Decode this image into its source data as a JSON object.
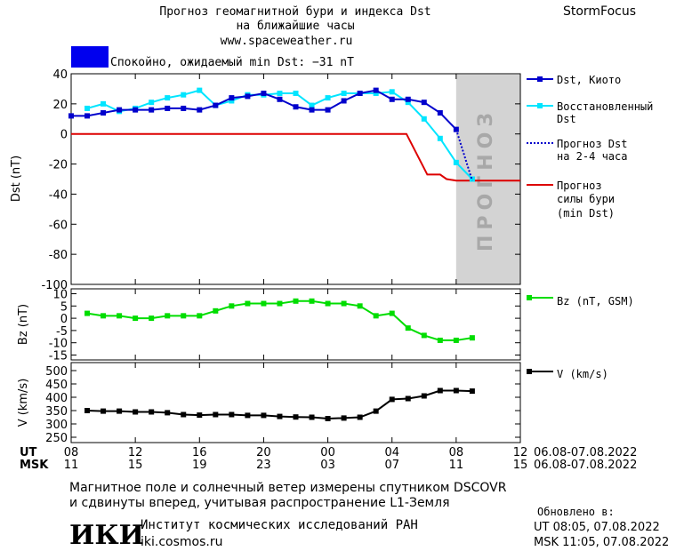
{
  "header": {
    "title_line1": "Прогноз геомагнитной бури и индекса Dst",
    "title_line2": "на ближайшие часы",
    "url": "www.spaceweather.ru",
    "brand": "StormFocus",
    "status_text": "Спокойно, ожидаемый min Dst: −31 nT",
    "status_color": "#0000ee"
  },
  "forecast_label": "ПРОГНОЗ",
  "legend": {
    "dst_kyoto": "Dst, Киото",
    "restored_1": "Восстановленный",
    "restored_2": "Dst",
    "forecast_dst_1": "Прогноз Dst",
    "forecast_dst_2": "на 2-4 часа",
    "storm_1": "Прогноз",
    "storm_2": "силы бури",
    "storm_3": "(min Dst)",
    "bz": "Bz (nT, GSM)",
    "v": "V (km/s)"
  },
  "axes": {
    "row_ut": "UT",
    "row_msk": "MSK",
    "ut_ticks": [
      "08",
      "12",
      "16",
      "20",
      "00",
      "04",
      "08",
      "12"
    ],
    "msk_ticks": [
      "11",
      "15",
      "19",
      "23",
      "03",
      "07",
      "11",
      "15"
    ],
    "date_range_ut": "06.08-07.08.2022",
    "date_range_msk": "06.08-07.08.2022"
  },
  "footer": {
    "note_line1": "Магнитное поле и солнечный ветер измерены спутником DSCOVR",
    "note_line2": "и сдвинуты вперед, учитывая распространение L1-Земля",
    "logo_text": "ИКИ",
    "institute": "Институт космических исследований РАН",
    "site": "iki.cosmos.ru",
    "updated_label": "Обновлено в:",
    "updated_ut": "UT  08:05, 07.08.2022",
    "updated_msk": "MSK 11:05, 07.08.2022"
  },
  "colors": {
    "dst": "#0000cc",
    "restored": "#00e5ff",
    "forecast": "#0000cc",
    "storm": "#dd0000",
    "bz": "#00dd00",
    "v": "#000000",
    "forecast_band": "#d3d3d3"
  },
  "chart_data": [
    {
      "type": "line",
      "ylabel": "Dst (nT)",
      "ylim": [
        -100,
        40
      ],
      "yticks": [
        40,
        20,
        0,
        -20,
        -40,
        -60,
        -80,
        -100
      ],
      "xlim": [
        0,
        28
      ],
      "forecast_band": [
        24,
        28
      ],
      "series": [
        {
          "name": "Dst, Киото",
          "x": [
            0,
            1,
            2,
            3,
            4,
            5,
            6,
            7,
            8,
            9,
            10,
            11,
            12,
            13,
            14,
            15,
            16,
            17,
            18,
            19,
            20,
            21,
            22,
            23,
            24
          ],
          "values": [
            12,
            12,
            14,
            16,
            16,
            16,
            17,
            17,
            16,
            19,
            24,
            25,
            27,
            23,
            18,
            16,
            16,
            22,
            27,
            29,
            23,
            23,
            21,
            14,
            3
          ]
        },
        {
          "name": "Восстановленный Dst",
          "x": [
            1,
            2,
            3,
            4,
            5,
            6,
            7,
            8,
            9,
            10,
            11,
            12,
            13,
            14,
            15,
            16,
            17,
            18,
            19,
            20,
            21,
            22,
            23,
            24,
            25
          ],
          "values": [
            17,
            20,
            15,
            17,
            21,
            24,
            26,
            29,
            19,
            22,
            26,
            26,
            27,
            27,
            19,
            24,
            27,
            27,
            27,
            28,
            21,
            10,
            -3,
            -19,
            -30
          ]
        },
        {
          "name": "Прогноз Dst на 2-4 часа",
          "x": [
            24,
            25
          ],
          "values": [
            3,
            -31
          ]
        },
        {
          "name": "Прогноз силы бури (min Dst)",
          "x": [
            0,
            20.9,
            22.2,
            23,
            23.4,
            24,
            28
          ],
          "values": [
            0,
            0,
            -27,
            -27,
            -30,
            -31,
            -31
          ]
        }
      ]
    },
    {
      "type": "line",
      "ylabel": "Bz (nT)",
      "ylim": [
        -17,
        12
      ],
      "yticks": [
        10,
        5,
        0,
        -5,
        -10,
        -15
      ],
      "xlim": [
        0,
        28
      ],
      "series": [
        {
          "name": "Bz (nT, GSM)",
          "x": [
            1,
            2,
            3,
            4,
            5,
            6,
            7,
            8,
            9,
            10,
            11,
            12,
            13,
            14,
            15,
            16,
            17,
            18,
            19,
            20,
            21,
            22,
            23,
            24,
            25
          ],
          "values": [
            2,
            1,
            1,
            0,
            0,
            1,
            1,
            1,
            3,
            5,
            6,
            6,
            6,
            7,
            7,
            6,
            6,
            5,
            1,
            2,
            -4,
            -7,
            -9,
            -9,
            -8
          ]
        }
      ]
    },
    {
      "type": "line",
      "ylabel": "V (km/s)",
      "ylim": [
        230,
        530
      ],
      "yticks": [
        500,
        450,
        400,
        350,
        300,
        250
      ],
      "xlim": [
        0,
        28
      ],
      "series": [
        {
          "name": "V (km/s)",
          "x": [
            1,
            2,
            3,
            4,
            5,
            6,
            7,
            8,
            9,
            10,
            11,
            12,
            13,
            14,
            15,
            16,
            17,
            18,
            19,
            20,
            21,
            22,
            23,
            24,
            25
          ],
          "values": [
            350,
            348,
            348,
            345,
            345,
            342,
            335,
            333,
            335,
            335,
            332,
            332,
            328,
            326,
            325,
            320,
            322,
            325,
            348,
            392,
            395,
            405,
            425,
            425,
            423
          ]
        }
      ]
    }
  ]
}
